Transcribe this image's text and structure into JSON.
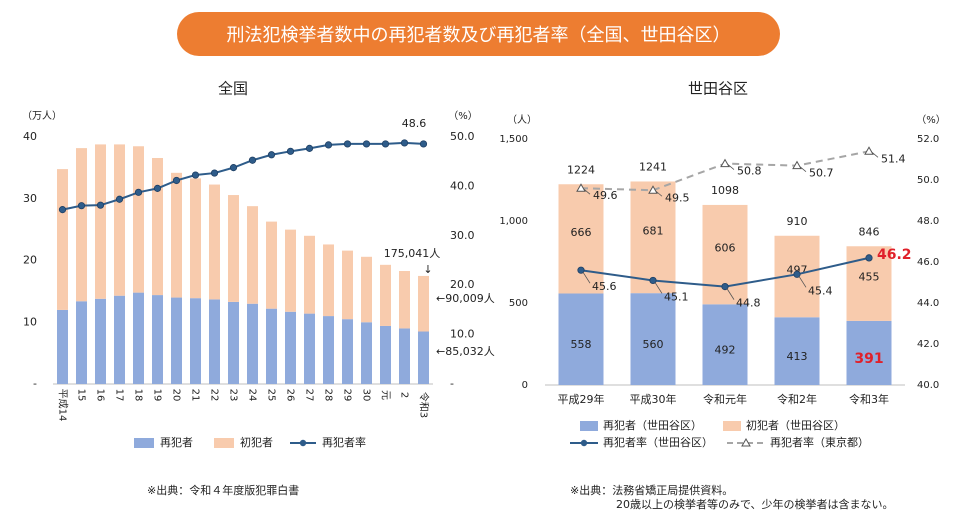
{
  "banner_title": "刑法犯検挙者数中の再犯者数及び再犯者率（全国、世田谷区）",
  "colors": {
    "repeat": "#8FAADC",
    "first": "#F8CBAD",
    "rate": "#2E5C8A",
    "tokyo": "#A6A6A6",
    "banner": "#ED7D31",
    "highlight": "#E0202A"
  },
  "chart_data": [
    {
      "type": "bar",
      "title": "全国",
      "y_left_unit": "（万人）",
      "y_right_unit": "（%）",
      "ylim": [
        0,
        40
      ],
      "y_left_ticks": [
        "-",
        "10",
        "20",
        "30",
        "40"
      ],
      "y_right_range": [
        0,
        50
      ],
      "y_right_ticks": [
        "-",
        "10.0",
        "20.0",
        "30.0",
        "40.0",
        "50.0"
      ],
      "categories": [
        "平成14",
        "15",
        "16",
        "17",
        "18",
        "19",
        "20",
        "21",
        "22",
        "23",
        "24",
        "25",
        "26",
        "27",
        "28",
        "29",
        "30",
        "元",
        "2",
        "令和3"
      ],
      "series": [
        {
          "name": "再犯者",
          "axis": "left",
          "values": [
            12.0,
            13.4,
            13.8,
            14.3,
            14.8,
            14.4,
            14.0,
            13.9,
            13.7,
            13.3,
            13.0,
            12.2,
            11.7,
            11.4,
            11.0,
            10.5,
            10.0,
            9.4,
            9.0,
            8.5
          ]
        },
        {
          "name": "初犯者",
          "axis": "left",
          "values": [
            22.8,
            24.8,
            25.0,
            24.5,
            23.7,
            22.2,
            20.2,
            19.4,
            18.6,
            17.3,
            15.8,
            14.1,
            13.3,
            12.6,
            11.6,
            11.1,
            10.6,
            9.9,
            9.3,
            9.0
          ]
        },
        {
          "name": "再犯者率",
          "axis": "right",
          "type": "line",
          "values": [
            35.3,
            36.1,
            36.2,
            37.4,
            38.8,
            39.6,
            41.2,
            42.3,
            42.7,
            43.8,
            45.3,
            46.4,
            47.1,
            47.7,
            48.4,
            48.6,
            48.6,
            48.6,
            48.8,
            48.6
          ]
        }
      ],
      "annotations": {
        "last_rate": "48.6",
        "total": "175,041人",
        "total_arrow": "↓",
        "first_label": "←90,009人",
        "repeat_label": "←85,032人"
      },
      "legend": [
        "再犯者",
        "初犯者",
        "再犯者率"
      ]
    },
    {
      "type": "bar",
      "title": "世田谷区",
      "y_left_unit": "（人）",
      "y_right_unit": "（%）",
      "ylim": [
        0,
        1500
      ],
      "y_left_ticks": [
        "0",
        "500",
        "1,000",
        "1,500"
      ],
      "y_right_range": [
        40,
        52
      ],
      "y_right_ticks": [
        "40.0",
        "42.0",
        "44.0",
        "46.0",
        "48.0",
        "50.0",
        "52.0"
      ],
      "categories": [
        "平成29年",
        "平成30年",
        "令和元年",
        "令和2年",
        "令和3年"
      ],
      "series": [
        {
          "name": "再犯者（世田谷区）",
          "axis": "left",
          "values": [
            558,
            560,
            492,
            413,
            391
          ],
          "labels": [
            "558",
            "560",
            "492",
            "413",
            "391"
          ]
        },
        {
          "name": "初犯者（世田谷区）",
          "axis": "left",
          "values": [
            666,
            681,
            606,
            497,
            455
          ],
          "labels": [
            "666",
            "681",
            "606",
            "497",
            "455"
          ]
        },
        {
          "name": "再犯者率（世田谷区）",
          "axis": "right",
          "type": "line",
          "values": [
            45.6,
            45.1,
            44.8,
            45.4,
            46.2
          ],
          "labels": [
            "45.6",
            "45.1",
            "44.8",
            "45.4",
            "46.2"
          ]
        },
        {
          "name": "再犯者率（東京都）",
          "axis": "right",
          "type": "line",
          "values": [
            49.6,
            49.5,
            50.8,
            50.7,
            51.4
          ],
          "labels": [
            "49.6",
            "49.5",
            "50.8",
            "50.7",
            "51.4"
          ]
        }
      ],
      "totals": [
        "1224",
        "1241",
        "1098",
        "910",
        "846"
      ],
      "legend": [
        "再犯者（世田谷区）",
        "初犯者（世田谷区）",
        "再犯者率（世田谷区）",
        "再犯者率（東京都）"
      ]
    }
  ],
  "sources": {
    "left": "※出典：令和４年度版犯罪白書",
    "right_line1": "※出典：法務省矯正局提供資料。",
    "right_line2": "20歳以上の検挙者等のみで、少年の検挙者は含まない。"
  }
}
